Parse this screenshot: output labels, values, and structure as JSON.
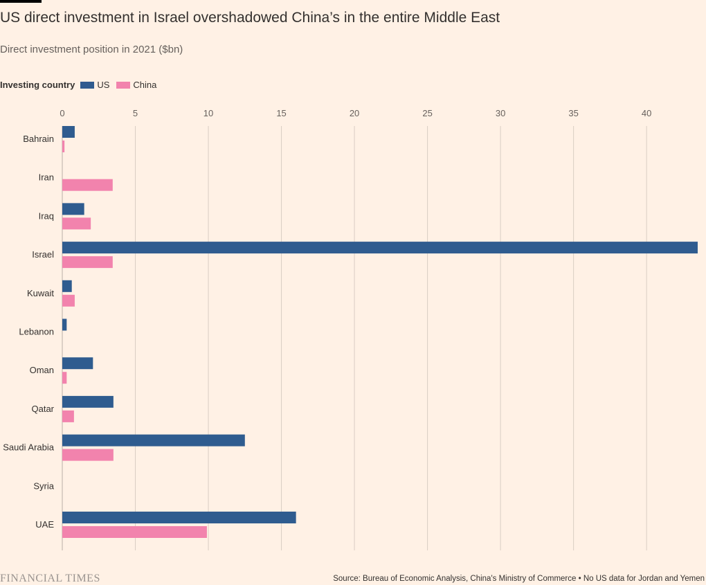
{
  "title": "US direct investment in Israel overshadowed China’s in the entire Middle East",
  "subtitle": "Direct investment position in 2021 ($bn)",
  "legend": {
    "title": "Investing country",
    "items": [
      {
        "label": "US",
        "color": "#2f5c8f"
      },
      {
        "label": "China",
        "color": "#f283ad"
      }
    ]
  },
  "footer": {
    "logo": "FINANCIAL TIMES",
    "source": "Source: Bureau of Economic Analysis, China's Ministry of Commerce • No US data for Jordan and Yemen"
  },
  "chart_data": {
    "type": "bar",
    "orientation": "horizontal",
    "categories": [
      "Bahrain",
      "Iran",
      "Iraq",
      "Israel",
      "Kuwait",
      "Lebanon",
      "Oman",
      "Qatar",
      "Saudi Arabia",
      "Syria",
      "UAE"
    ],
    "series": [
      {
        "name": "US",
        "color": "#2f5c8f",
        "values": [
          0.85,
          null,
          1.5,
          43.5,
          0.65,
          0.3,
          2.1,
          3.5,
          12.5,
          null,
          16.0
        ]
      },
      {
        "name": "China",
        "color": "#f283ad",
        "values": [
          0.15,
          3.45,
          1.95,
          3.45,
          0.85,
          null,
          0.3,
          0.8,
          3.5,
          null,
          9.9
        ]
      }
    ],
    "xticks": [
      0,
      5,
      10,
      15,
      20,
      25,
      30,
      35,
      40
    ],
    "xlim": [
      0,
      43.5
    ],
    "axis_position": "top",
    "grid": true,
    "legend_position": "top-left"
  }
}
